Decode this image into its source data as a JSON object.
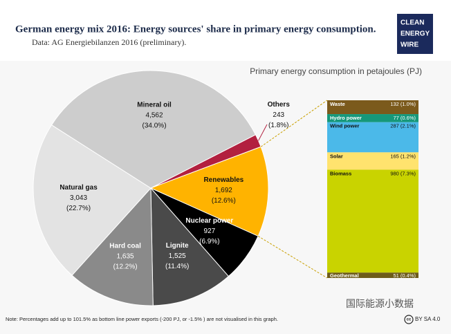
{
  "chart_data": [
    {
      "type": "pie",
      "title": "German energy mix 2016: Energy sources' share in primary energy consumption.",
      "subtitle": "Data: AG Energiebilanzen 2016 (preliminary).",
      "categories": [
        "Others",
        "Renewables",
        "Nuclear power",
        "Lignite",
        "Hard coal",
        "Natural gas",
        "Mineral oil"
      ],
      "values": [
        243,
        1692,
        927,
        1525,
        1635,
        3043,
        4562
      ],
      "value_labels": [
        "243",
        "1,692",
        "927",
        "1,525",
        "1,635",
        "3,043",
        "4,562"
      ],
      "share_labels": [
        "(1.8%)",
        "(12.6%)",
        "(6.9%)",
        "(11.4%)",
        "(12.2%)",
        "(22.7%)",
        "(34.0%)"
      ],
      "colors": [
        "#b2203f",
        "#ffb300",
        "#000000",
        "#4a4a4a",
        "#8a8a8a",
        "#e3e3e3",
        "#cdcdcd"
      ],
      "note": "Note: Percentages add up to 101.5% as bottom line power exports (-200 PJ, or -1.5% ) are not visualised in this graph."
    },
    {
      "type": "stacked-bar",
      "title": "Primary energy consumption in petajoules (PJ)",
      "categories": [
        "Waste",
        "Hydro power",
        "Wind power",
        "Solar",
        "Biomass",
        "Geothermal"
      ],
      "values": [
        132,
        77,
        287,
        165,
        980,
        51
      ],
      "value_labels": [
        "132 (1.0%)",
        "77 (0.6%)",
        "287 (2.1%)",
        "165 (1.2%)",
        "980 (7.3%)",
        "51 (0.4%)"
      ],
      "colors": [
        "#7b5a1c",
        "#16987a",
        "#4bb9e9",
        "#ffe36e",
        "#c9d300",
        "#6e5c1a"
      ]
    }
  ],
  "logo": [
    "CLEAN",
    "ENERGY",
    "WIRE"
  ],
  "watermark": "国际能源小数据",
  "license": {
    "icon": "cc",
    "text": "BY SA 4.0"
  }
}
